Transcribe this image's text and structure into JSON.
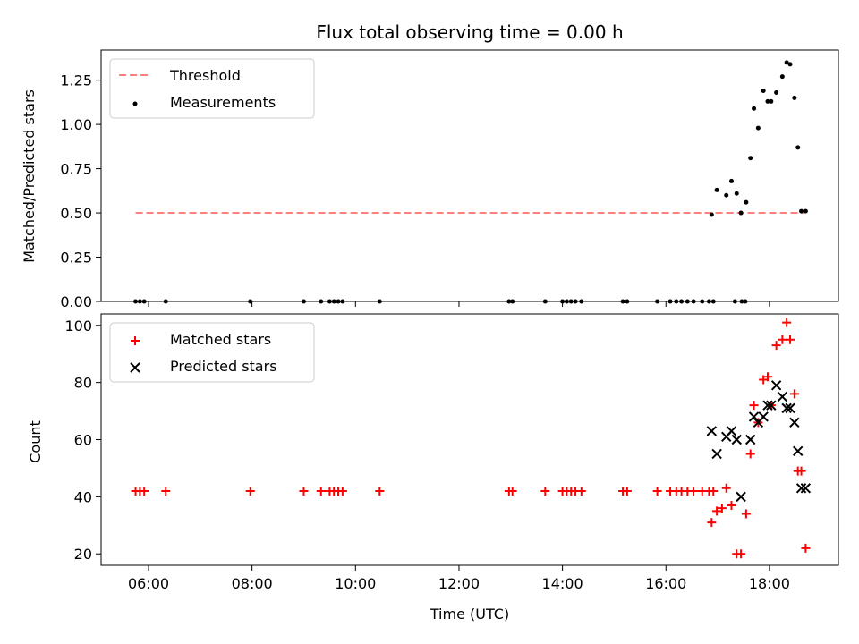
{
  "colors": {
    "threshold": "#ff7f7f",
    "measurements": "#000000",
    "matched": "#ff0000",
    "predicted": "#000000"
  },
  "chart_data": [
    {
      "type": "scatter",
      "title": "Flux total observing time = 0.00 h",
      "xlabel": "",
      "ylabel": "Matched/Predicted stars",
      "xlim": [
        "05:05",
        "19:20"
      ],
      "ylim": [
        0,
        1.42
      ],
      "x_tick_labels": [],
      "y_tick_labels": [
        "0.00",
        "0.25",
        "0.50",
        "0.75",
        "1.00",
        "1.25"
      ],
      "y_ticks": [
        0,
        0.25,
        0.5,
        0.75,
        1.0,
        1.25
      ],
      "legend": "top-left",
      "series": [
        {
          "name": "Threshold",
          "style": "dashed-line",
          "x": [
            "05:45",
            "18:40"
          ],
          "y": [
            0.5,
            0.5
          ]
        },
        {
          "name": "Measurements",
          "style": "dot",
          "x": [
            "05:45",
            "05:50",
            "05:55",
            "06:20",
            "07:58",
            "09:00",
            "09:20",
            "09:30",
            "09:35",
            "09:40",
            "09:45",
            "10:28",
            "12:58",
            "13:02",
            "13:40",
            "14:00",
            "14:05",
            "14:10",
            "14:15",
            "14:22",
            "15:10",
            "15:15",
            "15:50",
            "16:05",
            "16:12",
            "16:18",
            "16:25",
            "16:32",
            "16:42",
            "16:50",
            "16:55",
            "17:20",
            "17:28",
            "17:32",
            "16:53",
            "16:59",
            "17:10",
            "17:16",
            "17:22",
            "17:27",
            "17:33",
            "17:38",
            "17:42",
            "17:47",
            "17:53",
            "17:58",
            "18:02",
            "18:08",
            "18:15",
            "18:20",
            "18:24",
            "18:29",
            "18:33",
            "18:37",
            "18:42"
          ],
          "y": [
            0,
            0,
            0,
            0,
            0,
            0,
            0,
            0,
            0,
            0,
            0,
            0,
            0,
            0,
            0,
            0,
            0,
            0,
            0,
            0,
            0,
            0,
            0,
            0,
            0,
            0,
            0,
            0,
            0,
            0,
            0,
            0,
            0,
            0,
            0.49,
            0.63,
            0.6,
            0.68,
            0.61,
            0.5,
            0.56,
            0.81,
            1.09,
            0.98,
            1.19,
            1.13,
            1.13,
            1.18,
            1.27,
            1.35,
            1.34,
            1.15,
            0.87,
            0.51,
            0.51
          ]
        }
      ]
    },
    {
      "type": "scatter",
      "title": "",
      "xlabel": "Time (UTC)",
      "ylabel": "Count",
      "xlim": [
        "05:05",
        "19:20"
      ],
      "ylim": [
        16,
        104
      ],
      "x_tick_labels": [
        "06:00",
        "08:00",
        "10:00",
        "12:00",
        "14:00",
        "16:00",
        "18:00"
      ],
      "y_tick_labels": [
        "20",
        "40",
        "60",
        "80",
        "100"
      ],
      "y_ticks": [
        20,
        40,
        60,
        80,
        100
      ],
      "legend": "top-left",
      "series": [
        {
          "name": "Matched stars",
          "marker": "+",
          "x": [
            "05:45",
            "05:50",
            "05:55",
            "06:20",
            "07:58",
            "09:00",
            "09:20",
            "09:30",
            "09:35",
            "09:40",
            "09:45",
            "10:28",
            "12:58",
            "13:02",
            "13:40",
            "14:00",
            "14:05",
            "14:10",
            "14:15",
            "14:22",
            "15:10",
            "15:15",
            "15:50",
            "16:05",
            "16:12",
            "16:18",
            "16:25",
            "16:32",
            "16:42",
            "16:50",
            "16:55",
            "16:53",
            "16:59",
            "17:05",
            "17:10",
            "17:16",
            "17:22",
            "17:27",
            "17:33",
            "17:38",
            "17:42",
            "17:47",
            "17:53",
            "17:58",
            "18:02",
            "18:08",
            "18:15",
            "18:20",
            "18:24",
            "18:29",
            "18:33",
            "18:37",
            "18:42"
          ],
          "y": [
            42,
            42,
            42,
            42,
            42,
            42,
            42,
            42,
            42,
            42,
            42,
            42,
            42,
            42,
            42,
            42,
            42,
            42,
            42,
            42,
            42,
            42,
            42,
            42,
            42,
            42,
            42,
            42,
            42,
            42,
            42,
            31,
            35,
            36,
            43,
            37,
            20,
            20,
            34,
            55,
            72,
            66,
            81,
            82,
            72,
            93,
            95,
            101,
            95,
            76,
            49,
            49,
            22
          ]
        },
        {
          "name": "Predicted stars",
          "marker": "x",
          "x": [
            "16:53",
            "16:59",
            "17:10",
            "17:16",
            "17:22",
            "17:27",
            "17:38",
            "17:42",
            "17:47",
            "17:53",
            "17:58",
            "18:02",
            "18:08",
            "18:15",
            "18:20",
            "18:24",
            "18:29",
            "18:33",
            "18:37",
            "18:42"
          ],
          "y": [
            63,
            55,
            61,
            63,
            60,
            40,
            60,
            68,
            66,
            68,
            72,
            72,
            79,
            75,
            71,
            71,
            66,
            56,
            43,
            43
          ]
        }
      ]
    }
  ]
}
